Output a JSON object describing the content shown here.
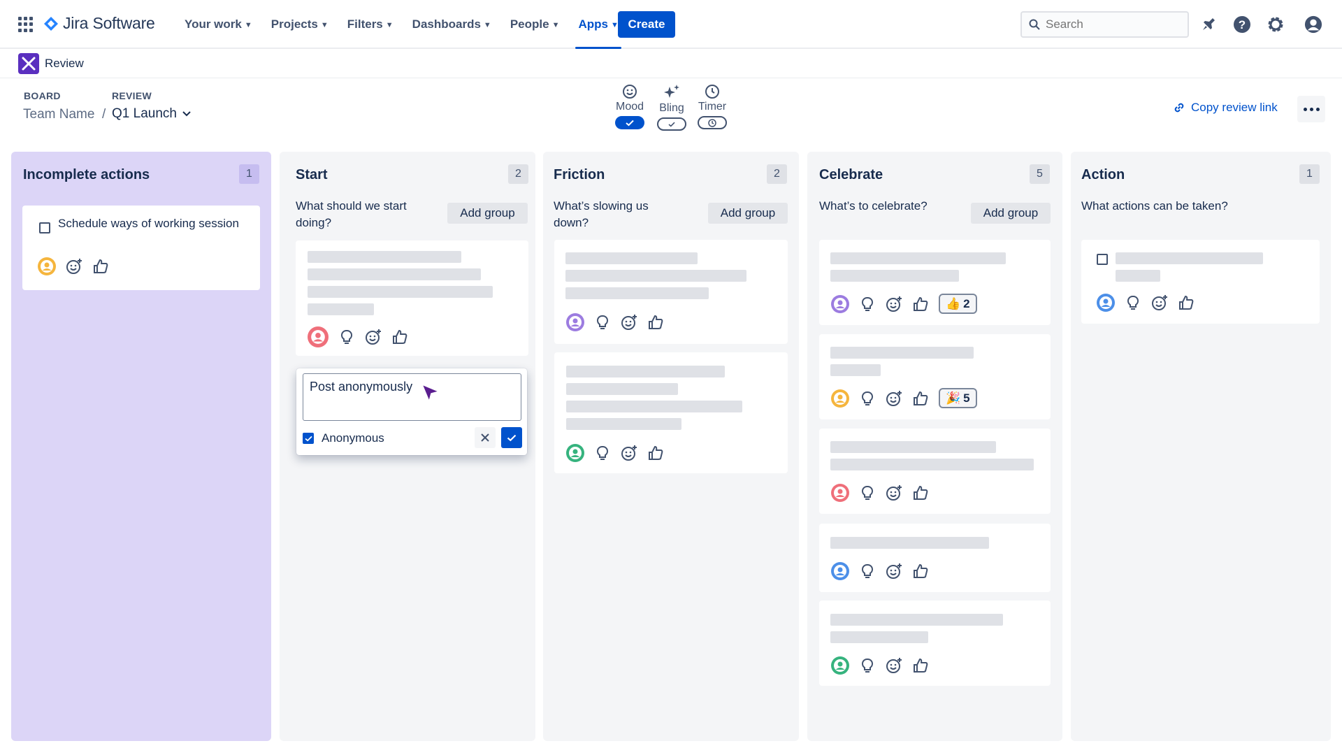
{
  "nav": {
    "app_name": "Jira Software",
    "items": [
      {
        "label": "Your work",
        "active": false
      },
      {
        "label": "Projects",
        "active": false
      },
      {
        "label": "Filters",
        "active": false
      },
      {
        "label": "Dashboards",
        "active": false
      },
      {
        "label": "People",
        "active": false
      },
      {
        "label": "Apps",
        "active": true
      }
    ],
    "create_label": "Create",
    "search_placeholder": "Search",
    "icons": [
      "notification-icon",
      "help-icon",
      "settings-icon",
      "profile-icon"
    ],
    "accent_color": "#0052cc"
  },
  "project": {
    "name": "Review",
    "logo_color": "#5a2fbf"
  },
  "header": {
    "board_label": "BOARD",
    "review_label": "REVIEW",
    "team_name": "Team Name",
    "separator": "/",
    "review_name": "Q1 Launch",
    "tools": [
      {
        "label": "Mood",
        "icon": "smiley-icon",
        "enabled": true
      },
      {
        "label": "Bling",
        "icon": "sparkle-icon",
        "enabled": false
      },
      {
        "label": "Timer",
        "icon": "clock-icon",
        "enabled": false
      }
    ],
    "copy_link_label": "Copy review link"
  },
  "columns": [
    {
      "title": "Incomplete actions",
      "count": "1",
      "items": [
        {
          "text": "Schedule ways of working session",
          "checked": false
        }
      ]
    },
    {
      "title": "Start",
      "count": "2",
      "description": "What should we start doing?",
      "add_group_label": "Add group"
    },
    {
      "title": "Friction",
      "count": "2",
      "description": "What’s slowing us down?",
      "add_group_label": "Add group"
    },
    {
      "title": "Celebrate",
      "count": "5",
      "description": "What’s to celebrate?",
      "add_group_label": "Add group",
      "badges": [
        {
          "emoji": "👍",
          "count": "2"
        },
        {
          "emoji": "🎉",
          "count": "5"
        }
      ]
    },
    {
      "title": "Action",
      "count": "1",
      "description": "What actions can be taken?"
    }
  ],
  "post_dialog": {
    "value": "Post anonymously",
    "anonymous_label": "Anonymous",
    "anonymous_checked": true
  },
  "avatar_colors": {
    "yellow": "#f5b53d",
    "pink": "#ef6f7a",
    "purple": "#9c7ce0",
    "green": "#36b37e",
    "blue": "#4c8fe8"
  }
}
